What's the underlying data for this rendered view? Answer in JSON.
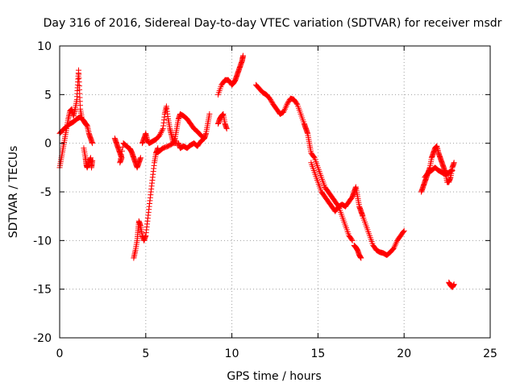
{
  "chart_data": {
    "type": "scatter",
    "title": "Day 316 of 2016, Sidereal Day-to-day VTEC variation (SDTVAR) for receiver msdr",
    "xlabel": "GPS time / hours",
    "ylabel": "SDTVAR / TECUs",
    "xlim": [
      0,
      25
    ],
    "ylim": [
      -20,
      10
    ],
    "xticks": [
      0,
      5,
      10,
      15,
      20,
      25
    ],
    "yticks": [
      -20,
      -15,
      -10,
      -5,
      0,
      5,
      10
    ],
    "grid": true,
    "marker": "+",
    "color": "#ff0000",
    "series": [
      {
        "name": "SDTVAR",
        "segments": [
          [
            [
              0.0,
              -2.5
            ],
            [
              0.1,
              -1.5
            ],
            [
              0.2,
              -0.5
            ],
            [
              0.3,
              0.5
            ],
            [
              0.4,
              1.5
            ],
            [
              0.5,
              2.5
            ],
            [
              0.6,
              3.3
            ],
            [
              0.7,
              3.5
            ],
            [
              0.8,
              2.8
            ],
            [
              0.9,
              3.5
            ],
            [
              1.0,
              4.5
            ],
            [
              1.05,
              6.0
            ],
            [
              1.1,
              7.5
            ],
            [
              1.15,
              5.5
            ],
            [
              1.2,
              3.5
            ],
            [
              1.3,
              2.5
            ],
            [
              1.4,
              2.3
            ],
            [
              1.5,
              2.0
            ],
            [
              1.6,
              1.8
            ],
            [
              1.7,
              1.0
            ],
            [
              1.8,
              0.5
            ],
            [
              1.9,
              0.0
            ]
          ],
          [
            [
              0.0,
              1.0
            ],
            [
              0.2,
              1.4
            ],
            [
              0.4,
              1.7
            ],
            [
              0.6,
              2.0
            ],
            [
              0.8,
              2.2
            ],
            [
              1.0,
              2.5
            ],
            [
              1.2,
              2.7
            ],
            [
              1.4,
              2.3
            ],
            [
              1.6,
              1.8
            ]
          ],
          [
            [
              1.4,
              -0.5
            ],
            [
              1.5,
              -1.5
            ],
            [
              1.55,
              -2.2
            ],
            [
              1.6,
              -2.5
            ],
            [
              1.7,
              -2.0
            ],
            [
              1.8,
              -1.5
            ],
            [
              1.85,
              -2.5
            ],
            [
              1.9,
              -1.8
            ]
          ],
          [
            [
              3.2,
              0.5
            ],
            [
              3.3,
              0.0
            ],
            [
              3.4,
              -0.5
            ],
            [
              3.5,
              -1.0
            ],
            [
              3.6,
              -1.5
            ],
            [
              3.5,
              -2.0
            ],
            [
              3.7,
              0.0
            ],
            [
              3.9,
              -0.3
            ],
            [
              4.0,
              -0.5
            ],
            [
              4.1,
              -0.6
            ],
            [
              4.2,
              -1.0
            ],
            [
              4.3,
              -1.5
            ],
            [
              4.4,
              -2.0
            ],
            [
              4.5,
              -2.5
            ],
            [
              4.6,
              -2.0
            ],
            [
              4.7,
              -1.5
            ]
          ],
          [
            [
              4.3,
              -11.8
            ],
            [
              4.4,
              -11.0
            ],
            [
              4.5,
              -10.0
            ],
            [
              4.55,
              -9.0
            ],
            [
              4.6,
              -8.0
            ],
            [
              4.7,
              -8.5
            ],
            [
              4.8,
              -9.5
            ],
            [
              4.9,
              -10.0
            ],
            [
              5.0,
              -9.5
            ],
            [
              5.1,
              -8.0
            ],
            [
              5.2,
              -6.5
            ],
            [
              5.3,
              -5.0
            ],
            [
              5.4,
              -3.5
            ],
            [
              5.5,
              -2.0
            ],
            [
              5.6,
              -1.0
            ],
            [
              5.7,
              -0.5
            ]
          ],
          [
            [
              4.8,
              0.0
            ],
            [
              4.9,
              0.5
            ],
            [
              5.0,
              1.0
            ],
            [
              5.1,
              0.3
            ],
            [
              5.2,
              0.0
            ],
            [
              5.4,
              0.2
            ],
            [
              5.6,
              0.4
            ],
            [
              5.8,
              0.8
            ],
            [
              6.0,
              1.5
            ],
            [
              6.1,
              3.0
            ],
            [
              6.2,
              3.8
            ],
            [
              6.3,
              2.5
            ],
            [
              6.4,
              1.5
            ],
            [
              6.5,
              0.8
            ],
            [
              6.6,
              0.0
            ],
            [
              6.7,
              0.5
            ],
            [
              6.8,
              1.5
            ],
            [
              6.9,
              2.5
            ],
            [
              7.0,
              3.0
            ],
            [
              7.2,
              2.8
            ],
            [
              7.4,
              2.5
            ],
            [
              7.6,
              2.0
            ],
            [
              7.8,
              1.5
            ],
            [
              8.0,
              1.2
            ],
            [
              8.2,
              0.8
            ],
            [
              8.4,
              0.5
            ],
            [
              8.5,
              1.0
            ],
            [
              8.6,
              2.0
            ],
            [
              8.7,
              3.0
            ]
          ],
          [
            [
              5.6,
              -1.0
            ],
            [
              5.8,
              -0.8
            ],
            [
              6.0,
              -0.5
            ],
            [
              6.3,
              -0.3
            ],
            [
              6.6,
              0.0
            ],
            [
              6.9,
              0.0
            ],
            [
              7.0,
              -0.5
            ],
            [
              7.2,
              -0.3
            ],
            [
              7.4,
              -0.5
            ],
            [
              7.6,
              -0.2
            ],
            [
              7.8,
              0.0
            ],
            [
              8.0,
              -0.3
            ],
            [
              8.2,
              0.2
            ],
            [
              8.4,
              0.5
            ]
          ],
          [
            [
              9.2,
              2.0
            ],
            [
              9.3,
              2.5
            ],
            [
              9.4,
              2.8
            ],
            [
              9.5,
              3.0
            ],
            [
              9.6,
              2.0
            ],
            [
              9.7,
              1.5
            ]
          ],
          [
            [
              9.2,
              5.0
            ],
            [
              9.4,
              6.0
            ],
            [
              9.6,
              6.5
            ],
            [
              9.8,
              6.5
            ],
            [
              10.0,
              6.0
            ],
            [
              10.1,
              6.2
            ],
            [
              10.2,
              6.5
            ],
            [
              10.3,
              7.0
            ],
            [
              10.4,
              7.5
            ],
            [
              10.5,
              8.0
            ],
            [
              10.6,
              8.5
            ],
            [
              10.65,
              9.0
            ]
          ],
          [
            [
              11.4,
              6.0
            ],
            [
              11.6,
              5.6
            ],
            [
              11.8,
              5.2
            ],
            [
              12.0,
              5.0
            ],
            [
              12.2,
              4.6
            ],
            [
              12.4,
              4.0
            ],
            [
              12.6,
              3.5
            ],
            [
              12.8,
              3.0
            ],
            [
              13.0,
              3.2
            ],
            [
              13.2,
              4.0
            ],
            [
              13.4,
              4.6
            ],
            [
              13.6,
              4.5
            ],
            [
              13.8,
              4.0
            ],
            [
              14.0,
              3.0
            ],
            [
              14.2,
              2.0
            ],
            [
              14.3,
              1.5
            ],
            [
              14.4,
              1.0
            ],
            [
              14.5,
              0.0
            ],
            [
              14.6,
              -1.0
            ],
            [
              14.8,
              -1.5
            ],
            [
              15.0,
              -2.5
            ],
            [
              15.2,
              -3.5
            ],
            [
              15.4,
              -4.5
            ],
            [
              15.6,
              -5.0
            ],
            [
              15.8,
              -5.5
            ],
            [
              16.0,
              -6.0
            ],
            [
              16.2,
              -6.5
            ],
            [
              16.4,
              -7.5
            ],
            [
              16.6,
              -8.5
            ],
            [
              16.8,
              -9.5
            ],
            [
              17.0,
              -10.0
            ]
          ],
          [
            [
              14.6,
              -2.0
            ],
            [
              14.8,
              -3.0
            ],
            [
              15.0,
              -4.0
            ],
            [
              15.2,
              -5.0
            ],
            [
              15.4,
              -5.5
            ],
            [
              15.6,
              -6.0
            ],
            [
              15.8,
              -6.5
            ],
            [
              16.0,
              -7.0
            ],
            [
              16.2,
              -6.5
            ],
            [
              16.4,
              -6.3
            ],
            [
              16.6,
              -6.5
            ],
            [
              16.8,
              -6.0
            ],
            [
              17.0,
              -5.5
            ],
            [
              17.1,
              -5.0
            ],
            [
              17.2,
              -4.5
            ],
            [
              17.3,
              -5.5
            ],
            [
              17.4,
              -6.5
            ],
            [
              17.5,
              -7.0
            ],
            [
              17.6,
              -7.5
            ],
            [
              17.8,
              -8.5
            ],
            [
              18.0,
              -9.5
            ],
            [
              18.2,
              -10.5
            ],
            [
              18.4,
              -11.0
            ],
            [
              18.6,
              -11.2
            ],
            [
              18.8,
              -11.3
            ],
            [
              19.0,
              -11.5
            ],
            [
              19.2,
              -11.2
            ],
            [
              19.4,
              -10.8
            ],
            [
              19.6,
              -10.0
            ],
            [
              19.8,
              -9.5
            ],
            [
              20.0,
              -9.0
            ]
          ],
          [
            [
              17.1,
              -10.5
            ],
            [
              17.2,
              -10.7
            ],
            [
              17.3,
              -11.0
            ],
            [
              17.4,
              -11.5
            ],
            [
              17.5,
              -11.8
            ]
          ],
          [
            [
              21.0,
              -5.0
            ],
            [
              21.1,
              -4.5
            ],
            [
              21.2,
              -4.0
            ],
            [
              21.3,
              -3.5
            ],
            [
              21.4,
              -3.0
            ],
            [
              21.5,
              -2.5
            ],
            [
              21.6,
              -1.5
            ],
            [
              21.7,
              -1.0
            ],
            [
              21.8,
              -0.5
            ],
            [
              21.9,
              -0.3
            ],
            [
              22.0,
              -1.0
            ],
            [
              22.1,
              -1.5
            ],
            [
              22.2,
              -2.0
            ],
            [
              22.3,
              -2.5
            ],
            [
              22.4,
              -3.0
            ],
            [
              22.5,
              -4.0
            ],
            [
              22.6,
              -4.0
            ],
            [
              22.7,
              -3.5
            ],
            [
              22.8,
              -2.5
            ],
            [
              22.9,
              -2.0
            ]
          ],
          [
            [
              21.2,
              -3.5
            ],
            [
              21.4,
              -3.0
            ],
            [
              21.6,
              -2.8
            ],
            [
              21.8,
              -2.5
            ],
            [
              22.0,
              -2.8
            ],
            [
              22.2,
              -3.0
            ],
            [
              22.4,
              -3.2
            ],
            [
              22.6,
              -3.0
            ],
            [
              22.8,
              -2.8
            ]
          ],
          [
            [
              22.6,
              -14.3
            ],
            [
              22.7,
              -14.6
            ],
            [
              22.8,
              -14.8
            ],
            [
              22.9,
              -14.5
            ]
          ]
        ]
      }
    ]
  }
}
